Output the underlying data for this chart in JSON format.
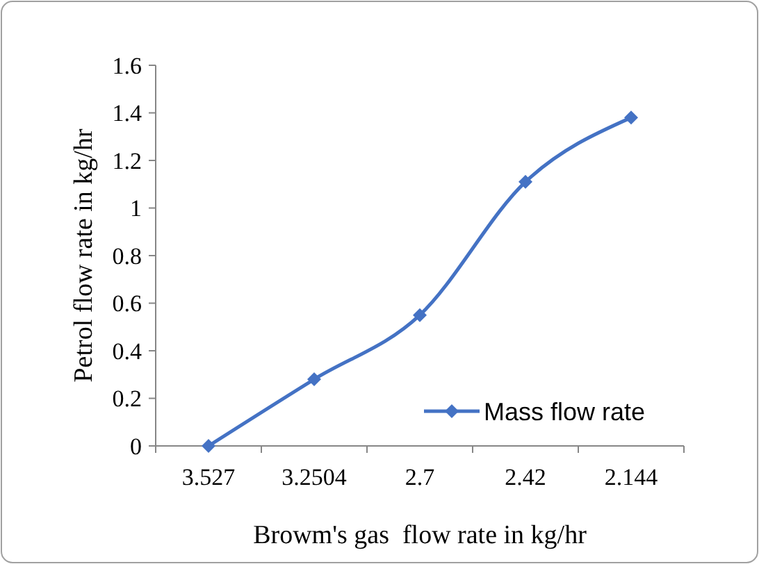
{
  "chart_data": {
    "type": "line",
    "xlabel": "Browm's gas  flow rate in kg/hr",
    "ylabel": "Petrol flow rate in kg/hr",
    "categories": [
      "3.527",
      "3.2504",
      "2.7",
      "2.42",
      "2.144"
    ],
    "series": [
      {
        "name": "Mass flow rate",
        "color": "#4472c4",
        "values": [
          0,
          0.28,
          0.55,
          1.11,
          1.38
        ]
      }
    ],
    "ylim": [
      0,
      1.6
    ],
    "yticks": [
      0,
      0.2,
      0.4,
      0.6,
      0.8,
      1,
      1.2,
      1.4,
      1.6
    ],
    "marker": "diamond",
    "legend": "bottom right",
    "grid": false
  }
}
